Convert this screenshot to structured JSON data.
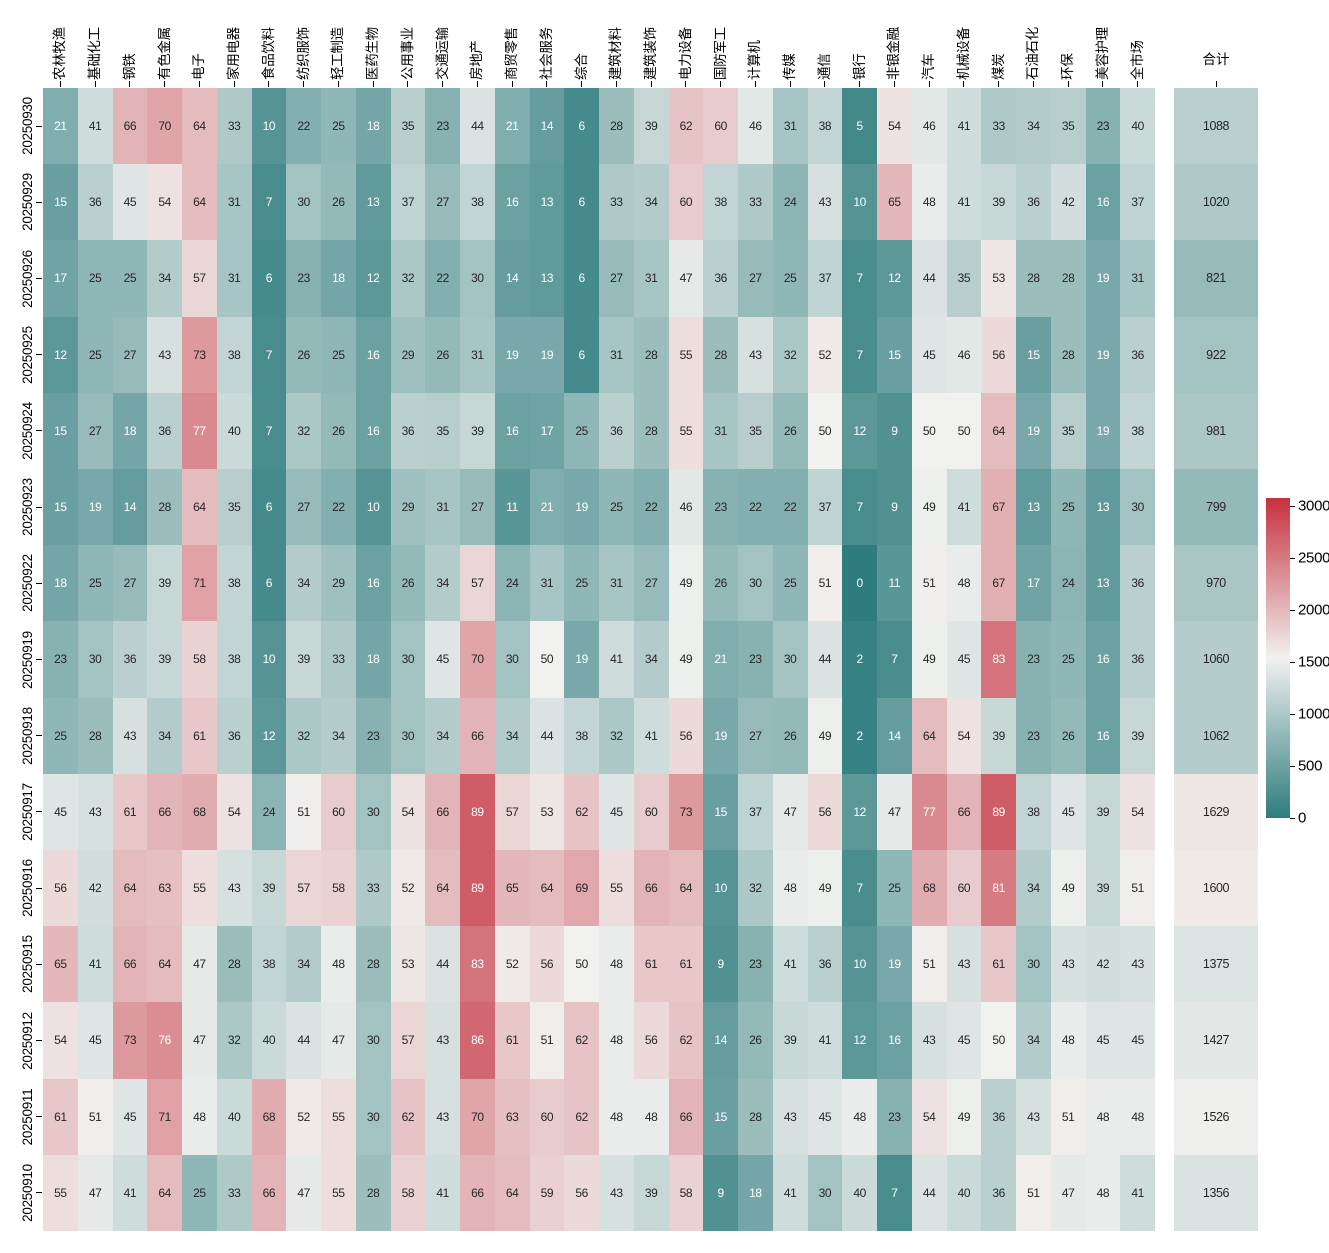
{
  "chart_data": {
    "type": "heatmap",
    "title": "",
    "x_labels": [
      "农林牧渔",
      "基础化工",
      "钢铁",
      "有色金属",
      "电子",
      "家用电器",
      "食品饮料",
      "纺织服饰",
      "轻工制造",
      "医药生物",
      "公用事业",
      "交通运输",
      "房地产",
      "商贸零售",
      "社会服务",
      "综合",
      "建筑材料",
      "建筑装饰",
      "电力设备",
      "国防军工",
      "计算机",
      "传媒",
      "通信",
      "银行",
      "非银金融",
      "汽车",
      "机械设备",
      "煤炭",
      "石油石化",
      "环保",
      "美容护理",
      "全市场"
    ],
    "y_labels": [
      "20250930",
      "20250929",
      "20250926",
      "20250925",
      "20250924",
      "20250923",
      "20250922",
      "20250919",
      "20250918",
      "20250917",
      "20250916",
      "20250915",
      "20250912",
      "20250911",
      "20250910"
    ],
    "values": [
      [
        21,
        41,
        66,
        70,
        64,
        33,
        10,
        22,
        25,
        18,
        35,
        23,
        44,
        21,
        14,
        6,
        28,
        39,
        62,
        60,
        46,
        31,
        38,
        5,
        54,
        46,
        41,
        33,
        34,
        35,
        23,
        40
      ],
      [
        15,
        36,
        45,
        54,
        64,
        31,
        7,
        30,
        26,
        13,
        37,
        27,
        38,
        16,
        13,
        6,
        33,
        34,
        60,
        38,
        33,
        24,
        43,
        10,
        65,
        48,
        41,
        39,
        36,
        42,
        16,
        37
      ],
      [
        17,
        25,
        25,
        34,
        57,
        31,
        6,
        23,
        18,
        12,
        32,
        22,
        30,
        14,
        13,
        6,
        27,
        31,
        47,
        36,
        27,
        25,
        37,
        7,
        12,
        44,
        35,
        53,
        28,
        28,
        19,
        31
      ],
      [
        12,
        25,
        27,
        43,
        73,
        38,
        7,
        26,
        25,
        16,
        29,
        26,
        31,
        19,
        19,
        6,
        31,
        28,
        55,
        28,
        43,
        32,
        52,
        7,
        15,
        45,
        46,
        56,
        15,
        28,
        19,
        36
      ],
      [
        15,
        27,
        18,
        36,
        77,
        40,
        7,
        32,
        26,
        16,
        36,
        35,
        39,
        16,
        17,
        25,
        36,
        28,
        55,
        31,
        35,
        26,
        50,
        12,
        9,
        50,
        50,
        64,
        19,
        35,
        19,
        38
      ],
      [
        15,
        19,
        14,
        28,
        64,
        35,
        6,
        27,
        22,
        10,
        29,
        31,
        27,
        11,
        21,
        19,
        25,
        22,
        46,
        23,
        22,
        22,
        37,
        7,
        9,
        49,
        41,
        67,
        13,
        25,
        13,
        30
      ],
      [
        18,
        25,
        27,
        39,
        71,
        38,
        6,
        34,
        29,
        16,
        26,
        34,
        57,
        24,
        31,
        25,
        31,
        27,
        49,
        26,
        30,
        25,
        51,
        0,
        11,
        51,
        48,
        67,
        17,
        24,
        13,
        36
      ],
      [
        23,
        30,
        36,
        39,
        58,
        38,
        10,
        39,
        33,
        18,
        30,
        45,
        70,
        30,
        50,
        19,
        41,
        34,
        49,
        21,
        23,
        30,
        44,
        2,
        7,
        49,
        45,
        83,
        23,
        25,
        16,
        36
      ],
      [
        25,
        28,
        43,
        34,
        61,
        36,
        12,
        32,
        34,
        23,
        30,
        34,
        66,
        34,
        44,
        38,
        32,
        41,
        56,
        19,
        27,
        26,
        49,
        2,
        14,
        64,
        54,
        39,
        23,
        26,
        16,
        39
      ],
      [
        45,
        43,
        61,
        66,
        68,
        54,
        24,
        51,
        60,
        30,
        54,
        66,
        89,
        57,
        53,
        62,
        45,
        60,
        73,
        15,
        37,
        47,
        56,
        12,
        47,
        77,
        66,
        89,
        38,
        45,
        39,
        54
      ],
      [
        56,
        42,
        64,
        63,
        55,
        43,
        39,
        57,
        58,
        33,
        52,
        64,
        89,
        65,
        64,
        69,
        55,
        66,
        64,
        10,
        32,
        48,
        49,
        7,
        25,
        68,
        60,
        81,
        34,
        49,
        39,
        51
      ],
      [
        65,
        41,
        66,
        64,
        47,
        28,
        38,
        34,
        48,
        28,
        53,
        44,
        83,
        52,
        56,
        50,
        48,
        61,
        61,
        9,
        23,
        41,
        36,
        10,
        19,
        51,
        43,
        61,
        30,
        43,
        42,
        43
      ],
      [
        54,
        45,
        73,
        76,
        47,
        32,
        40,
        44,
        47,
        30,
        57,
        43,
        86,
        61,
        51,
        62,
        48,
        56,
        62,
        14,
        26,
        39,
        41,
        12,
        16,
        43,
        45,
        50,
        34,
        48,
        45,
        45
      ],
      [
        61,
        51,
        45,
        71,
        48,
        40,
        68,
        52,
        55,
        30,
        62,
        43,
        70,
        63,
        60,
        62,
        48,
        48,
        66,
        15,
        28,
        43,
        45,
        48,
        23,
        54,
        49,
        36,
        43,
        51,
        48,
        48
      ],
      [
        55,
        47,
        41,
        64,
        25,
        33,
        66,
        47,
        55,
        28,
        58,
        41,
        66,
        64,
        59,
        56,
        43,
        39,
        58,
        9,
        18,
        41,
        30,
        40,
        7,
        44,
        40,
        36,
        51,
        47,
        48,
        41
      ]
    ],
    "totals_label": "合计",
    "totals": [
      1088,
      1020,
      821,
      922,
      981,
      799,
      970,
      1060,
      1062,
      1629,
      1600,
      1375,
      1427,
      1526,
      1356
    ],
    "cell_color_scale": {
      "min": 0,
      "center": 50,
      "max": 100
    },
    "totals_color_scale": {
      "min": 0,
      "center": 1540,
      "max": 3080
    },
    "colorbar": {
      "position": "right",
      "tick_values": [
        3000,
        2500,
        2000,
        1500,
        1000,
        500,
        0
      ],
      "tick_labels": [
        "3000",
        "2500",
        "2000",
        "1500",
        "1000",
        "500",
        "0"
      ]
    },
    "legend": "diverging teal-white-red"
  },
  "colors": {
    "low": "#2e7c7e",
    "mid": "#f1f1ef",
    "high": "#c5323f",
    "text_dark": "#262626",
    "text_light": "#ffffff"
  }
}
